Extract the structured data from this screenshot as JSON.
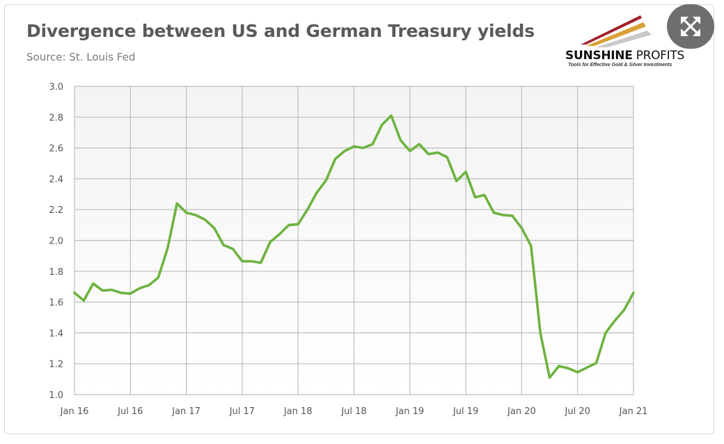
{
  "header": {
    "title": "Divergence between US and German Treasury yields",
    "source": "Source: St. Louis Fed"
  },
  "logo": {
    "name_bold": "SUNSHINE",
    "name_thin": " PROFITS",
    "tagline": "Tools for Effective Gold & Silver Investments"
  },
  "toolbar": {
    "expand_icon": "expand-arrows-icon"
  },
  "colors": {
    "line": "#6db33f",
    "grid": "#bdbdbd",
    "plot_bg_top": "#f3f3f3",
    "plot_bg_bottom": "#ffffff"
  },
  "chart_data": {
    "type": "line",
    "title": "Divergence between US and German Treasury yields",
    "xlabel": "",
    "ylabel": "",
    "ylim": [
      1.0,
      3.0
    ],
    "yticks": [
      "1.0",
      "1.2",
      "1.4",
      "1.6",
      "1.8",
      "2.0",
      "2.2",
      "2.4",
      "2.6",
      "2.8",
      "3.0"
    ],
    "xticks": [
      "Jan 16",
      "Jul 16",
      "Jan 17",
      "Jul 17",
      "Jan 18",
      "Jul 18",
      "Jan 19",
      "Jul 19",
      "Jan 20",
      "Jul 20",
      "Jan 21"
    ],
    "grid": true,
    "legend": "none",
    "series": [
      {
        "x": [
          "2016-01",
          "2016-02",
          "2016-03",
          "2016-04",
          "2016-05",
          "2016-06",
          "2016-07",
          "2016-08",
          "2016-09",
          "2016-10",
          "2016-11",
          "2016-12",
          "2017-01",
          "2017-02",
          "2017-03",
          "2017-04",
          "2017-05",
          "2017-06",
          "2017-07",
          "2017-08",
          "2017-09",
          "2017-10",
          "2017-11",
          "2017-12",
          "2018-01",
          "2018-02",
          "2018-03",
          "2018-04",
          "2018-05",
          "2018-06",
          "2018-07",
          "2018-08",
          "2018-09",
          "2018-10",
          "2018-11",
          "2018-12",
          "2019-01",
          "2019-02",
          "2019-03",
          "2019-04",
          "2019-05",
          "2019-06",
          "2019-07",
          "2019-08",
          "2019-09",
          "2019-10",
          "2019-11",
          "2019-12",
          "2020-01",
          "2020-02",
          "2020-03",
          "2020-04",
          "2020-05",
          "2020-06",
          "2020-07",
          "2020-08",
          "2020-09",
          "2020-10",
          "2020-11",
          "2020-12",
          "2021-01"
        ],
        "values": [
          1.66,
          1.61,
          1.72,
          1.675,
          1.68,
          1.66,
          1.655,
          1.69,
          1.71,
          1.76,
          1.95,
          2.24,
          2.18,
          2.165,
          2.135,
          2.08,
          1.97,
          1.945,
          1.865,
          1.865,
          1.855,
          1.99,
          2.04,
          2.1,
          2.105,
          2.2,
          2.31,
          2.39,
          2.53,
          2.58,
          2.61,
          2.6,
          2.625,
          2.75,
          2.81,
          2.65,
          2.58,
          2.625,
          2.56,
          2.57,
          2.54,
          2.385,
          2.445,
          2.28,
          2.295,
          2.18,
          2.165,
          2.16,
          2.08,
          1.965,
          1.4,
          1.11,
          1.185,
          1.17,
          1.145,
          1.175,
          1.205,
          1.4,
          1.48,
          1.55,
          1.66
        ]
      }
    ]
  }
}
